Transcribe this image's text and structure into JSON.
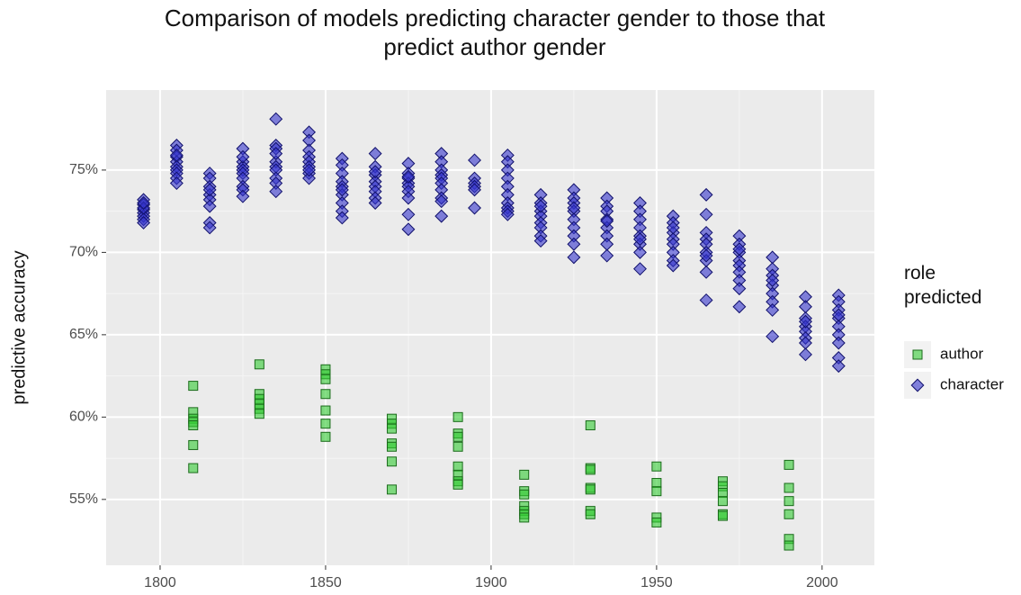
{
  "chart_data": {
    "type": "scatter",
    "title": "Comparison of models predicting character gender to those that predict author gender",
    "y_label": "predictive accuracy",
    "legend_title": "role predicted",
    "legend": "right",
    "grid": true,
    "xlim": [
      1783.7,
      2015.8
    ],
    "ylim": [
      51.0,
      79.86
    ],
    "xticks": [
      1800,
      1850,
      1900,
      1950,
      2000
    ],
    "yticks": [
      {
        "value": 55,
        "label": "55%"
      },
      {
        "value": 60,
        "label": "60%"
      },
      {
        "value": 65,
        "label": "65%"
      },
      {
        "value": 70,
        "label": "70%"
      },
      {
        "value": 75,
        "label": "75%"
      }
    ],
    "series": [
      {
        "name": "author",
        "color": "#33cc33",
        "stroke": "#1a6b1a",
        "marker": "square",
        "x": [
          1810,
          1810,
          1810,
          1810,
          1810,
          1810,
          1810,
          1830,
          1830,
          1830,
          1830,
          1830,
          1830,
          1850,
          1850,
          1850,
          1850,
          1850,
          1850,
          1850,
          1870,
          1870,
          1870,
          1870,
          1870,
          1870,
          1870,
          1890,
          1890,
          1890,
          1890,
          1890,
          1890,
          1890,
          1890,
          1910,
          1910,
          1910,
          1910,
          1910,
          1910,
          1910,
          1930,
          1930,
          1930,
          1930,
          1930,
          1930,
          1930,
          1950,
          1950,
          1950,
          1950,
          1950,
          1970,
          1970,
          1970,
          1970,
          1970,
          1970,
          1990,
          1990,
          1990,
          1990,
          1990,
          1990
        ],
        "values": [
          61.9,
          60.3,
          59.9,
          59.7,
          59.5,
          58.3,
          56.9,
          63.2,
          61.4,
          61.1,
          60.8,
          60.5,
          60.2,
          62.9,
          62.6,
          62.3,
          61.4,
          60.4,
          59.6,
          58.8,
          59.9,
          59.6,
          59.3,
          58.4,
          58.2,
          57.3,
          55.6,
          60.0,
          59.0,
          58.8,
          58.2,
          57.0,
          56.5,
          56.1,
          55.9,
          56.5,
          55.5,
          55.3,
          54.6,
          54.3,
          54.1,
          53.9,
          59.5,
          56.9,
          56.8,
          55.7,
          55.6,
          54.3,
          54.1,
          57.0,
          56.0,
          55.5,
          53.9,
          53.6,
          56.1,
          55.8,
          55.4,
          54.9,
          54.1,
          54.0,
          57.1,
          55.7,
          54.9,
          54.1,
          52.6,
          52.2
        ]
      },
      {
        "name": "character",
        "color": "#3333cc",
        "stroke": "#10106b",
        "marker": "diamond",
        "x": [
          1795,
          1795,
          1795,
          1795,
          1795,
          1795,
          1795,
          1795,
          1795,
          1805,
          1805,
          1805,
          1805,
          1805,
          1805,
          1805,
          1805,
          1805,
          1805,
          1815,
          1815,
          1815,
          1815,
          1815,
          1815,
          1815,
          1815,
          1815,
          1825,
          1825,
          1825,
          1825,
          1825,
          1825,
          1825,
          1825,
          1825,
          1825,
          1835,
          1835,
          1835,
          1835,
          1835,
          1835,
          1835,
          1835,
          1835,
          1835,
          1845,
          1845,
          1845,
          1845,
          1845,
          1845,
          1845,
          1845,
          1845,
          1855,
          1855,
          1855,
          1855,
          1855,
          1855,
          1855,
          1855,
          1855,
          1855,
          1865,
          1865,
          1865,
          1865,
          1865,
          1865,
          1865,
          1865,
          1865,
          1875,
          1875,
          1875,
          1875,
          1875,
          1875,
          1875,
          1875,
          1875,
          1875,
          1885,
          1885,
          1885,
          1885,
          1885,
          1885,
          1885,
          1885,
          1885,
          1885,
          1895,
          1895,
          1895,
          1895,
          1895,
          1895,
          1905,
          1905,
          1905,
          1905,
          1905,
          1905,
          1905,
          1905,
          1905,
          1905,
          1915,
          1915,
          1915,
          1915,
          1915,
          1915,
          1915,
          1915,
          1915,
          1925,
          1925,
          1925,
          1925,
          1925,
          1925,
          1925,
          1925,
          1925,
          1925,
          1935,
          1935,
          1935,
          1935,
          1935,
          1935,
          1935,
          1935,
          1935,
          1945,
          1945,
          1945,
          1945,
          1945,
          1945,
          1945,
          1945,
          1945,
          1955,
          1955,
          1955,
          1955,
          1955,
          1955,
          1955,
          1955,
          1955,
          1965,
          1965,
          1965,
          1965,
          1965,
          1965,
          1965,
          1965,
          1965,
          1965,
          1975,
          1975,
          1975,
          1975,
          1975,
          1975,
          1975,
          1975,
          1975,
          1975,
          1985,
          1985,
          1985,
          1985,
          1985,
          1985,
          1985,
          1985,
          1985,
          1995,
          1995,
          1995,
          1995,
          1995,
          1995,
          1995,
          1995,
          1995,
          2005,
          2005,
          2005,
          2005,
          2005,
          2005,
          2005,
          2005,
          2005,
          2005
        ],
        "values": [
          73.2,
          72.9,
          72.6,
          72.4,
          72.2,
          72.0,
          71.8,
          72.7,
          73.0,
          76.5,
          76.2,
          75.8,
          75.5,
          75.2,
          75.0,
          74.8,
          74.5,
          74.2,
          75.9,
          74.8,
          74.5,
          74.0,
          73.5,
          73.2,
          72.8,
          71.8,
          71.5,
          73.8,
          76.3,
          75.5,
          75.2,
          75.0,
          74.8,
          74.5,
          74.0,
          73.8,
          73.4,
          75.8,
          78.1,
          76.5,
          76.3,
          75.5,
          75.2,
          75.0,
          74.5,
          74.2,
          73.7,
          76.0,
          77.3,
          76.8,
          76.2,
          75.8,
          75.5,
          75.2,
          74.8,
          74.5,
          75.0,
          75.7,
          75.3,
          74.8,
          74.3,
          74.0,
          73.5,
          73.0,
          72.5,
          72.1,
          73.8,
          76.0,
          75.2,
          74.7,
          74.3,
          74.0,
          73.7,
          73.3,
          73.0,
          74.9,
          75.4,
          74.8,
          74.5,
          74.2,
          74.0,
          73.7,
          73.3,
          72.3,
          71.4,
          74.6,
          76.0,
          75.5,
          75.0,
          74.7,
          74.5,
          74.2,
          73.8,
          73.3,
          73.1,
          72.2,
          75.6,
          74.5,
          74.2,
          74.0,
          73.8,
          72.7,
          75.9,
          75.5,
          75.0,
          74.5,
          74.0,
          73.5,
          73.0,
          72.7,
          72.5,
          72.3,
          73.5,
          73.0,
          72.5,
          72.2,
          71.8,
          71.5,
          71.0,
          70.7,
          72.8,
          73.8,
          73.3,
          73.0,
          72.5,
          72.0,
          71.5,
          71.0,
          70.5,
          69.7,
          72.7,
          73.3,
          72.8,
          72.5,
          72.0,
          71.5,
          71.0,
          70.5,
          69.8,
          71.9,
          73.0,
          72.5,
          72.0,
          71.5,
          71.0,
          70.5,
          70.0,
          69.0,
          70.8,
          72.2,
          71.8,
          71.2,
          70.8,
          70.5,
          70.0,
          69.5,
          69.2,
          71.5,
          73.5,
          72.3,
          71.2,
          70.8,
          70.5,
          70.0,
          69.5,
          68.8,
          67.1,
          69.8,
          71.0,
          70.5,
          70.0,
          69.5,
          69.2,
          68.8,
          68.3,
          67.8,
          66.7,
          70.2,
          69.7,
          69.0,
          68.6,
          68.0,
          67.5,
          67.0,
          66.5,
          64.9,
          68.3,
          67.3,
          66.7,
          66.0,
          65.5,
          65.2,
          64.8,
          64.5,
          63.8,
          65.8,
          67.4,
          67.0,
          66.5,
          66.0,
          65.5,
          65.0,
          64.5,
          63.6,
          63.1,
          66.2
        ]
      }
    ]
  }
}
